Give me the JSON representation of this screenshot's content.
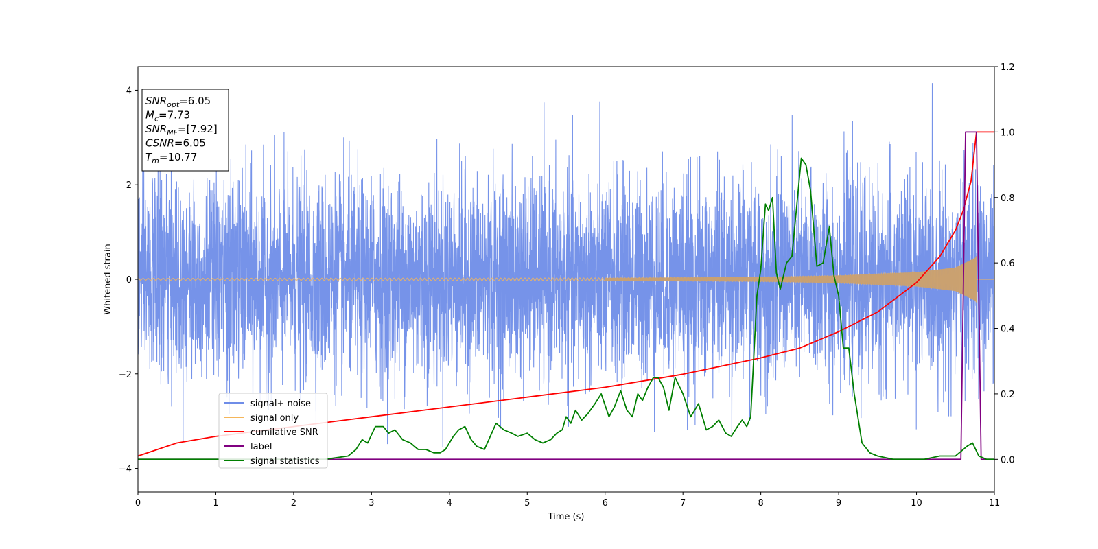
{
  "chart_data": {
    "type": "line",
    "xlabel": "Time (s)",
    "ylabel_left": "Whitened strain",
    "ylabel_right": "",
    "xlim": [
      0,
      11
    ],
    "ylim_left": [
      -4.5,
      4.5
    ],
    "ylim_right": [
      -0.1,
      1.2
    ],
    "x_ticks": [
      "0",
      "1",
      "2",
      "3",
      "4",
      "5",
      "6",
      "7",
      "8",
      "9",
      "10",
      "11"
    ],
    "y_left_ticks": [
      "−4",
      "−2",
      "0",
      "2",
      "4"
    ],
    "y_right_ticks": [
      "0.0",
      "0.2",
      "0.4",
      "0.6",
      "0.8",
      "1.0",
      "1.2"
    ],
    "grid": false,
    "legend_position": "lower-left",
    "annotation_box": {
      "position": "top-left",
      "lines": [
        {
          "symbol": "SNR",
          "sub": "opt",
          "value": "=6.05"
        },
        {
          "symbol": "M",
          "sub": "c",
          "value": "=7.73"
        },
        {
          "symbol": "SNR",
          "sub": "MF",
          "value": "=[7.92]"
        },
        {
          "symbol": "CSNR",
          "sub": "",
          "value": "=6.05"
        },
        {
          "symbol": "T",
          "sub": "m",
          "value": "=10.77"
        }
      ]
    },
    "series": [
      {
        "name": "signal+ noise",
        "axis": "left",
        "color": "#6f8de8",
        "kind": "noise",
        "description_values": {
          "typical_band": [
            -2.3,
            2.3
          ],
          "peak_max": 4.15,
          "peak_min": -4.15
        }
      },
      {
        "name": "signal only",
        "axis": "left",
        "color": "#f5b65a",
        "kind": "chirp",
        "amplitude_envelope": {
          "t": [
            0,
            6,
            8,
            9,
            10,
            10.5,
            10.75,
            10.77
          ],
          "a": [
            0.02,
            0.03,
            0.05,
            0.08,
            0.15,
            0.25,
            0.45,
            0.5
          ]
        }
      },
      {
        "name": "cumilative SNR",
        "axis": "right",
        "color": "#ff0000",
        "x": [
          0,
          0.5,
          1,
          2,
          3,
          4,
          5,
          6,
          7,
          8,
          8.5,
          9,
          9.5,
          10,
          10.3,
          10.5,
          10.6,
          10.7,
          10.77,
          11
        ],
        "y": [
          0.01,
          0.05,
          0.07,
          0.1,
          0.13,
          0.16,
          0.19,
          0.22,
          0.26,
          0.31,
          0.34,
          0.39,
          0.45,
          0.54,
          0.62,
          0.7,
          0.76,
          0.85,
          1.0,
          1.0
        ]
      },
      {
        "name": "label",
        "axis": "right",
        "color": "#800080",
        "x": [
          0,
          10.57,
          10.63,
          10.77,
          10.83,
          11
        ],
        "y": [
          0,
          0,
          1,
          1,
          0,
          0
        ]
      },
      {
        "name": "signal statistics",
        "axis": "right",
        "color": "#007f00",
        "x": [
          0,
          0.5,
          1,
          1.5,
          2,
          2.4,
          2.7,
          2.8,
          2.88,
          2.95,
          3.05,
          3.15,
          3.22,
          3.3,
          3.4,
          3.5,
          3.6,
          3.7,
          3.8,
          3.88,
          3.95,
          4.05,
          4.12,
          4.2,
          4.28,
          4.35,
          4.45,
          4.6,
          4.7,
          4.8,
          4.88,
          5.0,
          5.1,
          5.2,
          5.3,
          5.38,
          5.45,
          5.5,
          5.56,
          5.62,
          5.7,
          5.78,
          5.87,
          5.95,
          6.05,
          6.12,
          6.2,
          6.28,
          6.35,
          6.42,
          6.48,
          6.55,
          6.62,
          6.68,
          6.75,
          6.82,
          6.9,
          7.0,
          7.1,
          7.2,
          7.3,
          7.38,
          7.46,
          7.55,
          7.62,
          7.7,
          7.76,
          7.82,
          7.87,
          7.95,
          8.0,
          8.06,
          8.1,
          8.15,
          8.2,
          8.25,
          8.33,
          8.4,
          8.46,
          8.52,
          8.58,
          8.64,
          8.72,
          8.8,
          8.88,
          8.94,
          9.0,
          9.06,
          9.13,
          9.2,
          9.3,
          9.4,
          9.5,
          9.7,
          9.9,
          10.0,
          10.1,
          10.3,
          10.5,
          10.65,
          10.72,
          10.8,
          10.9,
          11
        ],
        "y": [
          0.0,
          0.0,
          0.0,
          0.0,
          0.0,
          0.0,
          0.01,
          0.03,
          0.06,
          0.05,
          0.1,
          0.1,
          0.08,
          0.09,
          0.06,
          0.05,
          0.03,
          0.03,
          0.02,
          0.02,
          0.03,
          0.07,
          0.09,
          0.1,
          0.06,
          0.04,
          0.03,
          0.11,
          0.09,
          0.08,
          0.07,
          0.08,
          0.06,
          0.05,
          0.06,
          0.08,
          0.09,
          0.13,
          0.11,
          0.15,
          0.12,
          0.14,
          0.17,
          0.2,
          0.13,
          0.16,
          0.21,
          0.15,
          0.13,
          0.2,
          0.18,
          0.22,
          0.25,
          0.25,
          0.22,
          0.15,
          0.25,
          0.2,
          0.13,
          0.17,
          0.09,
          0.1,
          0.12,
          0.08,
          0.07,
          0.1,
          0.12,
          0.1,
          0.13,
          0.5,
          0.58,
          0.78,
          0.76,
          0.8,
          0.57,
          0.52,
          0.6,
          0.62,
          0.77,
          0.92,
          0.9,
          0.82,
          0.59,
          0.6,
          0.71,
          0.56,
          0.5,
          0.34,
          0.34,
          0.2,
          0.05,
          0.02,
          0.01,
          0.0,
          0.0,
          0.0,
          0.0,
          0.01,
          0.01,
          0.04,
          0.05,
          0.01,
          0.0,
          0.0
        ]
      }
    ]
  }
}
